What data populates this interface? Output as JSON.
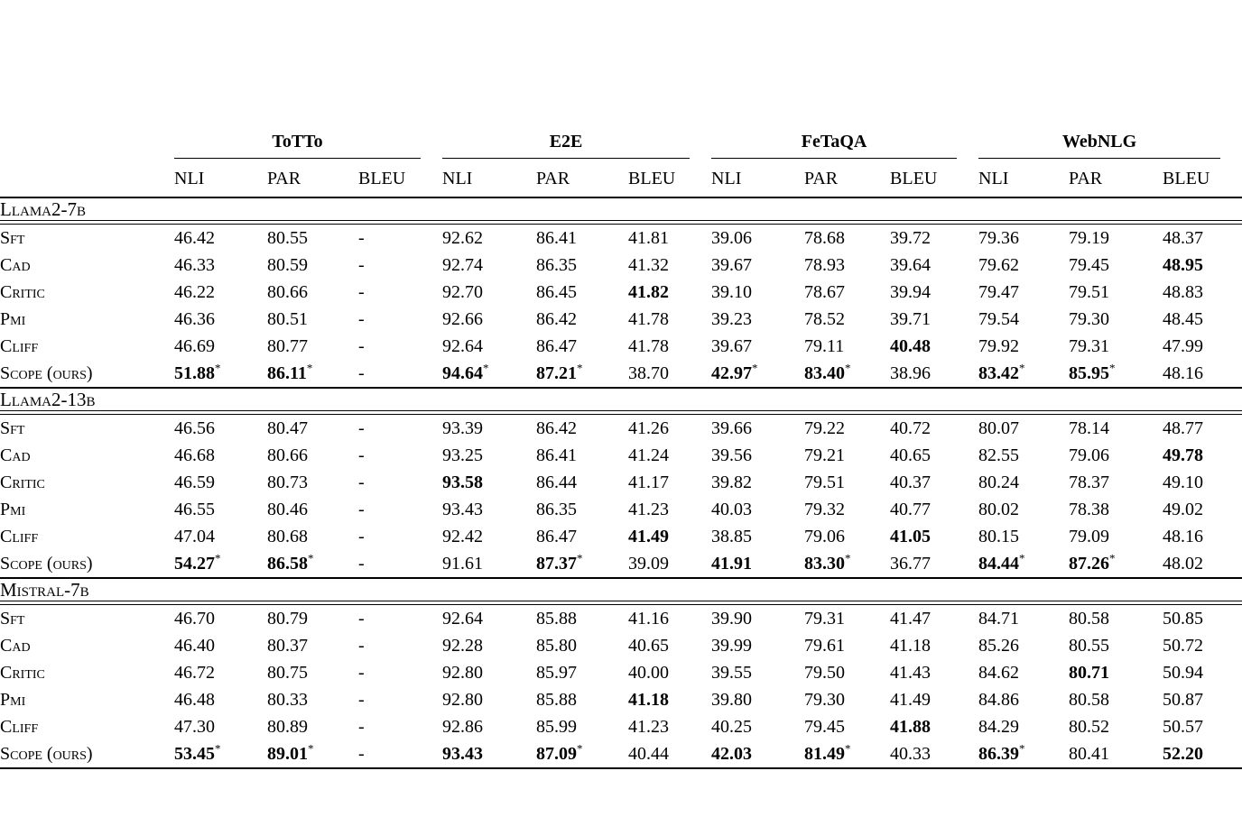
{
  "page": {
    "background": "#ffffff",
    "text_color": "#000000"
  },
  "table": {
    "groups": [
      {
        "label": "ToTTo"
      },
      {
        "label": "E2E"
      },
      {
        "label": "FeTaQA"
      },
      {
        "label": "WebNLG"
      }
    ],
    "metrics": [
      "NLI",
      "PAR",
      "BLEU"
    ],
    "sections": [
      {
        "title": "Llama2-7b",
        "rows": [
          {
            "label": "Sft",
            "cells": [
              {
                "v": "46.42"
              },
              {
                "v": "80.55"
              },
              {
                "v": "-"
              },
              {
                "v": "92.62"
              },
              {
                "v": "86.41"
              },
              {
                "v": "41.81"
              },
              {
                "v": "39.06"
              },
              {
                "v": "78.68"
              },
              {
                "v": "39.72"
              },
              {
                "v": "79.36"
              },
              {
                "v": "79.19"
              },
              {
                "v": "48.37"
              }
            ]
          },
          {
            "label": "Cad",
            "cells": [
              {
                "v": "46.33"
              },
              {
                "v": "80.59"
              },
              {
                "v": "-"
              },
              {
                "v": "92.74"
              },
              {
                "v": "86.35"
              },
              {
                "v": "41.32"
              },
              {
                "v": "39.67"
              },
              {
                "v": "78.93"
              },
              {
                "v": "39.64"
              },
              {
                "v": "79.62"
              },
              {
                "v": "79.45"
              },
              {
                "v": "48.95",
                "b": true
              }
            ]
          },
          {
            "label": "Critic",
            "cells": [
              {
                "v": "46.22"
              },
              {
                "v": "80.66"
              },
              {
                "v": "-"
              },
              {
                "v": "92.70"
              },
              {
                "v": "86.45"
              },
              {
                "v": "41.82",
                "b": true
              },
              {
                "v": "39.10"
              },
              {
                "v": "78.67"
              },
              {
                "v": "39.94"
              },
              {
                "v": "79.47"
              },
              {
                "v": "79.51"
              },
              {
                "v": "48.83"
              }
            ]
          },
          {
            "label": "Pmi",
            "cells": [
              {
                "v": "46.36"
              },
              {
                "v": "80.51"
              },
              {
                "v": "-"
              },
              {
                "v": "92.66"
              },
              {
                "v": "86.42"
              },
              {
                "v": "41.78"
              },
              {
                "v": "39.23"
              },
              {
                "v": "78.52"
              },
              {
                "v": "39.71"
              },
              {
                "v": "79.54"
              },
              {
                "v": "79.30"
              },
              {
                "v": "48.45"
              }
            ]
          },
          {
            "label": "Cliff",
            "cells": [
              {
                "v": "46.69"
              },
              {
                "v": "80.77"
              },
              {
                "v": "-"
              },
              {
                "v": "92.64"
              },
              {
                "v": "86.47"
              },
              {
                "v": "41.78"
              },
              {
                "v": "39.67"
              },
              {
                "v": "79.11"
              },
              {
                "v": "40.48",
                "b": true
              },
              {
                "v": "79.92"
              },
              {
                "v": "79.31"
              },
              {
                "v": "47.99"
              }
            ]
          },
          {
            "label": "Scope (ours)",
            "cells": [
              {
                "v": "51.88",
                "b": true,
                "s": true
              },
              {
                "v": "86.11",
                "b": true,
                "s": true
              },
              {
                "v": "-"
              },
              {
                "v": "94.64",
                "b": true,
                "s": true
              },
              {
                "v": "87.21",
                "b": true,
                "s": true
              },
              {
                "v": "38.70"
              },
              {
                "v": "42.97",
                "b": true,
                "s": true
              },
              {
                "v": "83.40",
                "b": true,
                "s": true
              },
              {
                "v": "38.96"
              },
              {
                "v": "83.42",
                "b": true,
                "s": true
              },
              {
                "v": "85.95",
                "b": true,
                "s": true
              },
              {
                "v": "48.16"
              }
            ]
          }
        ]
      },
      {
        "title": "Llama2-13b",
        "rows": [
          {
            "label": "Sft",
            "cells": [
              {
                "v": "46.56"
              },
              {
                "v": "80.47"
              },
              {
                "v": "-"
              },
              {
                "v": "93.39"
              },
              {
                "v": "86.42"
              },
              {
                "v": "41.26"
              },
              {
                "v": "39.66"
              },
              {
                "v": "79.22"
              },
              {
                "v": "40.72"
              },
              {
                "v": "80.07"
              },
              {
                "v": "78.14"
              },
              {
                "v": "48.77"
              }
            ]
          },
          {
            "label": "Cad",
            "cells": [
              {
                "v": "46.68"
              },
              {
                "v": "80.66"
              },
              {
                "v": "-"
              },
              {
                "v": "93.25"
              },
              {
                "v": "86.41"
              },
              {
                "v": "41.24"
              },
              {
                "v": "39.56"
              },
              {
                "v": "79.21"
              },
              {
                "v": "40.65"
              },
              {
                "v": "82.55"
              },
              {
                "v": "79.06"
              },
              {
                "v": "49.78",
                "b": true
              }
            ]
          },
          {
            "label": "Critic",
            "cells": [
              {
                "v": "46.59"
              },
              {
                "v": "80.73"
              },
              {
                "v": "-"
              },
              {
                "v": "93.58",
                "b": true
              },
              {
                "v": "86.44"
              },
              {
                "v": "41.17"
              },
              {
                "v": "39.82"
              },
              {
                "v": "79.51"
              },
              {
                "v": "40.37"
              },
              {
                "v": "80.24"
              },
              {
                "v": "78.37"
              },
              {
                "v": "49.10"
              }
            ]
          },
          {
            "label": "Pmi",
            "cells": [
              {
                "v": "46.55"
              },
              {
                "v": "80.46"
              },
              {
                "v": "-"
              },
              {
                "v": "93.43"
              },
              {
                "v": "86.35"
              },
              {
                "v": "41.23"
              },
              {
                "v": "40.03"
              },
              {
                "v": "79.32"
              },
              {
                "v": "40.77"
              },
              {
                "v": "80.02"
              },
              {
                "v": "78.38"
              },
              {
                "v": "49.02"
              }
            ]
          },
          {
            "label": "Cliff",
            "cells": [
              {
                "v": "47.04"
              },
              {
                "v": "80.68"
              },
              {
                "v": "-"
              },
              {
                "v": "92.42"
              },
              {
                "v": "86.47"
              },
              {
                "v": "41.49",
                "b": true
              },
              {
                "v": "38.85"
              },
              {
                "v": "79.06"
              },
              {
                "v": "41.05",
                "b": true
              },
              {
                "v": "80.15"
              },
              {
                "v": "79.09"
              },
              {
                "v": "48.16"
              }
            ]
          },
          {
            "label": "Scope (ours)",
            "cells": [
              {
                "v": "54.27",
                "b": true,
                "s": true
              },
              {
                "v": "86.58",
                "b": true,
                "s": true
              },
              {
                "v": "-"
              },
              {
                "v": "91.61"
              },
              {
                "v": "87.37",
                "b": true,
                "s": true
              },
              {
                "v": "39.09"
              },
              {
                "v": "41.91",
                "b": true
              },
              {
                "v": "83.30",
                "b": true,
                "s": true
              },
              {
                "v": "36.77"
              },
              {
                "v": "84.44",
                "b": true,
                "s": true
              },
              {
                "v": "87.26",
                "b": true,
                "s": true
              },
              {
                "v": "48.02"
              }
            ]
          }
        ]
      },
      {
        "title": "Mistral-7b",
        "rows": [
          {
            "label": "Sft",
            "cells": [
              {
                "v": "46.70"
              },
              {
                "v": "80.79"
              },
              {
                "v": "-"
              },
              {
                "v": "92.64"
              },
              {
                "v": "85.88"
              },
              {
                "v": "41.16"
              },
              {
                "v": "39.90"
              },
              {
                "v": "79.31"
              },
              {
                "v": "41.47"
              },
              {
                "v": "84.71"
              },
              {
                "v": "80.58"
              },
              {
                "v": "50.85"
              }
            ]
          },
          {
            "label": "Cad",
            "cells": [
              {
                "v": "46.40"
              },
              {
                "v": "80.37"
              },
              {
                "v": "-"
              },
              {
                "v": "92.28"
              },
              {
                "v": "85.80"
              },
              {
                "v": "40.65"
              },
              {
                "v": "39.99"
              },
              {
                "v": "79.61"
              },
              {
                "v": "41.18"
              },
              {
                "v": "85.26"
              },
              {
                "v": "80.55"
              },
              {
                "v": "50.72"
              }
            ]
          },
          {
            "label": "Critic",
            "cells": [
              {
                "v": "46.72"
              },
              {
                "v": "80.75"
              },
              {
                "v": "-"
              },
              {
                "v": "92.80"
              },
              {
                "v": "85.97"
              },
              {
                "v": "40.00"
              },
              {
                "v": "39.55"
              },
              {
                "v": "79.50"
              },
              {
                "v": "41.43"
              },
              {
                "v": "84.62"
              },
              {
                "v": "80.71",
                "b": true
              },
              {
                "v": "50.94"
              }
            ]
          },
          {
            "label": "Pmi",
            "cells": [
              {
                "v": "46.48"
              },
              {
                "v": "80.33"
              },
              {
                "v": "-"
              },
              {
                "v": "92.80"
              },
              {
                "v": "85.88"
              },
              {
                "v": "41.18",
                "b": true
              },
              {
                "v": "39.80"
              },
              {
                "v": "79.30"
              },
              {
                "v": "41.49"
              },
              {
                "v": "84.86"
              },
              {
                "v": "80.58"
              },
              {
                "v": "50.87"
              }
            ]
          },
          {
            "label": "Cliff",
            "cells": [
              {
                "v": "47.30"
              },
              {
                "v": "80.89"
              },
              {
                "v": "-"
              },
              {
                "v": "92.86"
              },
              {
                "v": "85.99"
              },
              {
                "v": "41.23"
              },
              {
                "v": "40.25"
              },
              {
                "v": "79.45"
              },
              {
                "v": "41.88",
                "b": true
              },
              {
                "v": "84.29"
              },
              {
                "v": "80.52"
              },
              {
                "v": "50.57"
              }
            ]
          },
          {
            "label": "Scope (ours)",
            "cells": [
              {
                "v": "53.45",
                "b": true,
                "s": true
              },
              {
                "v": "89.01",
                "b": true,
                "s": true
              },
              {
                "v": "-"
              },
              {
                "v": "93.43",
                "b": true
              },
              {
                "v": "87.09",
                "b": true,
                "s": true
              },
              {
                "v": "40.44"
              },
              {
                "v": "42.03",
                "b": true
              },
              {
                "v": "81.49",
                "b": true,
                "s": true
              },
              {
                "v": "40.33"
              },
              {
                "v": "86.39",
                "b": true,
                "s": true
              },
              {
                "v": "80.41"
              },
              {
                "v": "52.20",
                "b": true
              }
            ]
          }
        ]
      }
    ]
  }
}
